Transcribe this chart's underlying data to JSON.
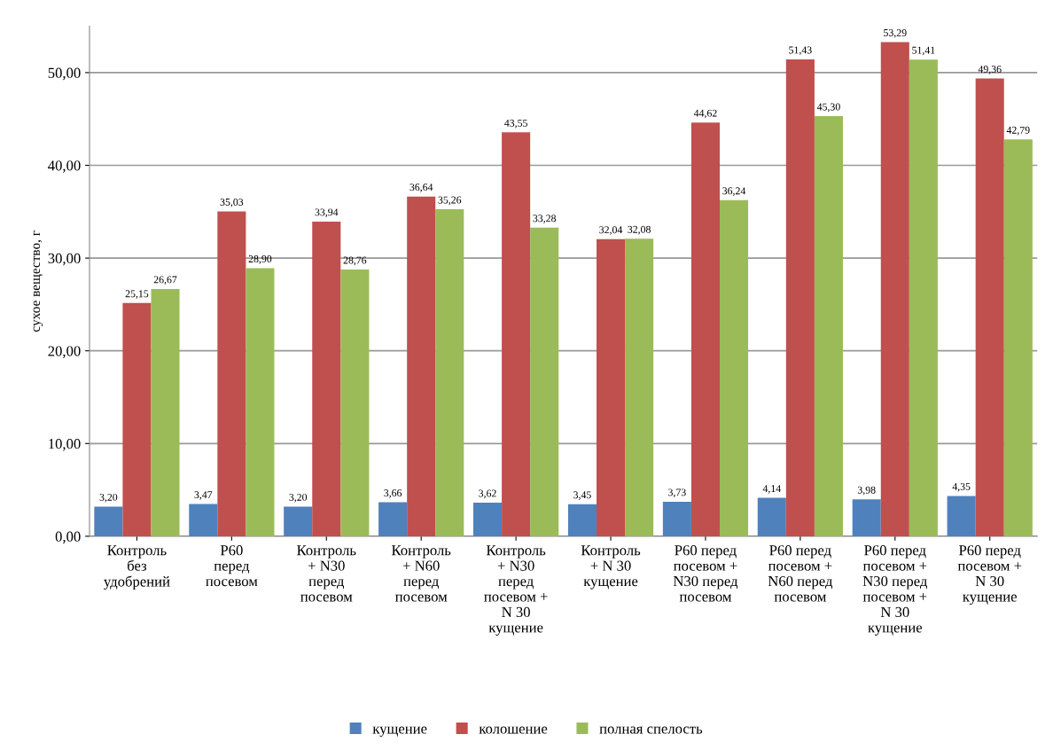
{
  "chart_data": {
    "type": "bar",
    "ylabel": "сухое вещество, г",
    "categories": [
      "Контроль\nбез\nудобрений",
      "Р60\nперед\nпосевом",
      "Контроль\n+ N30\nперед\nпосевом",
      "Контроль\n+ N60\nперед\nпосевом",
      "Контроль\n+ N30\nперед\nпосевом +\nN 30\nкущение",
      "Контроль\n+ N 30\nкущение",
      "Р60 перед\nпосевом +\nN30 перед\nпосевом",
      "Р60 перед\nпосевом +\nN60 перед\nпосевом",
      "Р60 перед\nпосевом +\nN30 перед\nпосевом +\nN 30\nкущение",
      "Р60 перед\nпосевом +\nN 30\nкущение"
    ],
    "series": [
      {
        "name": "кущение",
        "color": "#4f81bd",
        "values": [
          3.2,
          3.47,
          3.2,
          3.66,
          3.62,
          3.45,
          3.73,
          4.14,
          3.98,
          4.35
        ],
        "value_labels": [
          "3,20",
          "3,47",
          "3,20",
          "3,66",
          "3,62",
          "3,45",
          "3,73",
          "4,14",
          "3,98",
          "4,35"
        ]
      },
      {
        "name": "колошение",
        "color": "#c0504d",
        "values": [
          25.15,
          35.03,
          33.94,
          36.64,
          43.55,
          32.04,
          44.62,
          51.43,
          53.29,
          49.36
        ],
        "value_labels": [
          "25,15",
          "35,03",
          "33,94",
          "36,64",
          "43,55",
          "32,04",
          "44,62",
          "51,43",
          "53,29",
          "49,36"
        ]
      },
      {
        "name": "полная спелость",
        "color": "#9bbb59",
        "values": [
          26.67,
          28.9,
          28.76,
          35.26,
          33.28,
          32.08,
          36.24,
          45.3,
          51.41,
          42.79
        ],
        "value_labels": [
          "26,67",
          "28,90",
          "28,76",
          "35,26",
          "33,28",
          "32,08",
          "36,24",
          "45,30",
          "51,41",
          "42,79"
        ]
      }
    ],
    "ylim": [
      0,
      55
    ],
    "yticks": [
      {
        "value": 0,
        "label": "0,00"
      },
      {
        "value": 10,
        "label": "10,00"
      },
      {
        "value": 20,
        "label": "20,00"
      },
      {
        "value": 30,
        "label": "30,00"
      },
      {
        "value": 40,
        "label": "40,00"
      },
      {
        "value": 50,
        "label": "50,00"
      }
    ],
    "grid": "y",
    "legend": "bottom"
  }
}
